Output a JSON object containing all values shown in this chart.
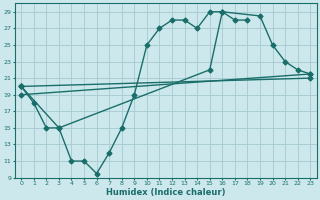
{
  "xlabel": "Humidex (Indice chaleur)",
  "bg_color": "#cce8ec",
  "grid_color": "#aacdd4",
  "line_color": "#1a6e6a",
  "xlim": [
    -0.5,
    23.5
  ],
  "ylim": [
    9,
    30
  ],
  "xticks": [
    0,
    1,
    2,
    3,
    4,
    5,
    6,
    7,
    8,
    9,
    10,
    11,
    12,
    13,
    14,
    15,
    16,
    17,
    18,
    19,
    20,
    21,
    22,
    23
  ],
  "yticks": [
    9,
    11,
    13,
    15,
    17,
    19,
    21,
    23,
    25,
    27,
    29
  ],
  "line1_x": [
    0,
    1,
    2,
    3,
    4,
    5,
    6,
    7,
    8,
    9,
    10,
    11,
    12,
    13,
    14,
    15,
    16,
    17,
    18
  ],
  "line1_y": [
    20,
    18,
    15,
    15,
    11,
    11,
    9.5,
    12,
    15,
    19,
    25,
    27,
    28,
    28,
    27,
    29,
    29,
    28,
    28
  ],
  "line2_x": [
    0,
    3,
    15,
    16,
    19,
    20,
    21,
    22,
    23
  ],
  "line2_y": [
    20,
    15,
    22,
    29,
    28.5,
    25,
    23,
    22,
    21.5
  ],
  "line3_x": [
    0,
    23
  ],
  "line3_y": [
    20,
    21
  ],
  "line4_x": [
    0,
    23
  ],
  "line4_y": [
    19,
    21.5
  ],
  "marker": "D",
  "markersize": 2.5,
  "linewidth": 1.0
}
